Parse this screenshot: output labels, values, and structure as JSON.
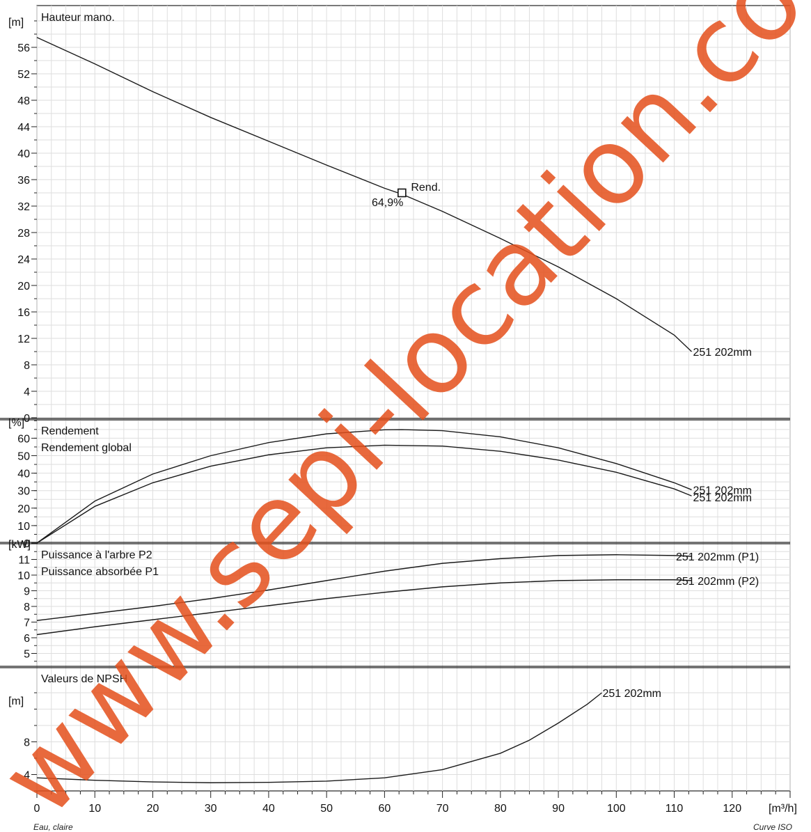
{
  "chart_data": {
    "type": "line",
    "footer_left": "Eau, claire",
    "footer_right": "Curve ISO",
    "watermark": "www.sepi-location.com",
    "watermark_color": "#e4501c",
    "x_axis": {
      "unit": "[m³/h]",
      "range": [
        0,
        130
      ],
      "ticks": [
        "0",
        "10",
        "20",
        "30",
        "40",
        "50",
        "60",
        "70",
        "80",
        "90",
        "100",
        "110",
        "120"
      ],
      "tick_values": [
        0,
        10,
        20,
        30,
        40,
        50,
        60,
        70,
        80,
        90,
        100,
        110,
        120
      ]
    },
    "panels": [
      {
        "id": "head",
        "title": "Hauteur mano.",
        "unit": "[m]",
        "ylim": [
          0,
          60
        ],
        "tick_values": [
          0,
          4,
          8,
          12,
          16,
          20,
          24,
          28,
          32,
          36,
          40,
          44,
          48,
          52,
          56
        ],
        "tick_labels": [
          "0",
          "4",
          "8",
          "12",
          "16",
          "20",
          "24",
          "28",
          "32",
          "36",
          "40",
          "44",
          "48",
          "52",
          "56"
        ],
        "series": [
          {
            "name": "251 202mm",
            "x": [
              0,
              10,
              20,
              30,
              40,
              50,
              60,
              63,
              70,
              80,
              90,
              100,
              110,
              113
            ],
            "y": [
              57.5,
              53.5,
              49.3,
              45.4,
              41.8,
              38.2,
              34.7,
              33.8,
              31.2,
              27.1,
              22.8,
              18.0,
              12.5,
              10.0
            ]
          }
        ],
        "marker": {
          "x": 63,
          "y": 34,
          "label": "Rend.",
          "value": "64,9%"
        }
      },
      {
        "id": "efficiency",
        "title": "Rendement",
        "title2": "Rendement global",
        "unit": "[%]",
        "ylim": [
          0,
          70
        ],
        "tick_values": [
          0,
          10,
          20,
          30,
          40,
          50,
          60
        ],
        "tick_labels": [
          "0",
          "10",
          "20",
          "30",
          "40",
          "50",
          "60"
        ],
        "series": [
          {
            "name": "251 202mm",
            "x": [
              0,
              10,
              20,
              30,
              40,
              50,
              60,
              63,
              70,
              80,
              90,
              100,
              110,
              113
            ],
            "y": [
              0,
              24,
              39.5,
              50,
              57.5,
              62.5,
              64.8,
              64.9,
              64.3,
              60.8,
              54.5,
              45.5,
              34.5,
              30.5
            ]
          },
          {
            "name": "251 202mm",
            "x": [
              0,
              10,
              20,
              30,
              40,
              50,
              60,
              70,
              80,
              90,
              100,
              110,
              113
            ],
            "y": [
              0,
              21,
              34.5,
              44,
              50.5,
              54.5,
              56,
              55.5,
              52.5,
              47.5,
              40.5,
              31,
              27
            ]
          }
        ]
      },
      {
        "id": "power",
        "title": "Puissance à l'arbre P2",
        "title2": "Puissance absorbée P1",
        "unit": "[kW]",
        "ylim": [
          4,
          12
        ],
        "tick_values": [
          5,
          6,
          7,
          8,
          9,
          10,
          11
        ],
        "tick_labels": [
          "5",
          "6",
          "7",
          "8",
          "9",
          "10",
          "11"
        ],
        "series": [
          {
            "name": "251 202mm (P1)",
            "x": [
              0,
              10,
              20,
              30,
              40,
              50,
              60,
              70,
              80,
              90,
              100,
              110,
              113
            ],
            "y": [
              7.1,
              7.55,
              8.0,
              8.5,
              9.05,
              9.65,
              10.25,
              10.75,
              11.05,
              11.25,
              11.3,
              11.25,
              11.2
            ]
          },
          {
            "name": "251 202mm (P2)",
            "x": [
              0,
              10,
              20,
              30,
              40,
              50,
              60,
              70,
              80,
              90,
              100,
              110,
              113
            ],
            "y": [
              6.2,
              6.7,
              7.15,
              7.6,
              8.05,
              8.5,
              8.9,
              9.25,
              9.5,
              9.65,
              9.7,
              9.7,
              9.65
            ]
          }
        ]
      },
      {
        "id": "npsh",
        "title": "Valeurs de NPSH",
        "unit": "[m]",
        "ylim": [
          2,
          14
        ],
        "tick_values": [
          4,
          8
        ],
        "tick_labels": [
          "4",
          "8"
        ],
        "series": [
          {
            "name": "251 202mm",
            "x": [
              0,
              10,
              20,
              30,
              40,
              50,
              60,
              70,
              80,
              85,
              90,
              95,
              97.5
            ],
            "y": [
              3.6,
              3.3,
              3.1,
              3.0,
              3.05,
              3.2,
              3.6,
              4.6,
              6.6,
              8.2,
              10.3,
              12.6,
              14.0
            ]
          }
        ]
      }
    ]
  }
}
